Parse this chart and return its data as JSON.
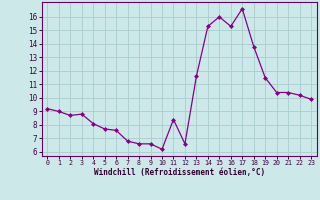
{
  "x": [
    0,
    1,
    2,
    3,
    4,
    5,
    6,
    7,
    8,
    9,
    10,
    11,
    12,
    13,
    14,
    15,
    16,
    17,
    18,
    19,
    20,
    21,
    22,
    23
  ],
  "y": [
    9.2,
    9.0,
    8.7,
    8.8,
    8.1,
    7.7,
    7.6,
    6.8,
    6.6,
    6.6,
    6.2,
    8.4,
    6.6,
    11.6,
    15.3,
    16.0,
    15.3,
    16.6,
    13.8,
    11.5,
    10.4,
    10.4,
    10.2,
    9.9
  ],
  "line_color": "#880088",
  "marker_color": "#880088",
  "bg_color": "#cce8e8",
  "grid_color": "#aacccc",
  "xlabel": "Windchill (Refroidissement éolien,°C)",
  "yticks": [
    6,
    7,
    8,
    9,
    10,
    11,
    12,
    13,
    14,
    15,
    16
  ],
  "xlim": [
    -0.5,
    23.5
  ],
  "ylim": [
    5.7,
    17.1
  ],
  "xticks": [
    0,
    1,
    2,
    3,
    4,
    5,
    6,
    7,
    8,
    9,
    10,
    11,
    12,
    13,
    14,
    15,
    16,
    17,
    18,
    19,
    20,
    21,
    22,
    23
  ]
}
